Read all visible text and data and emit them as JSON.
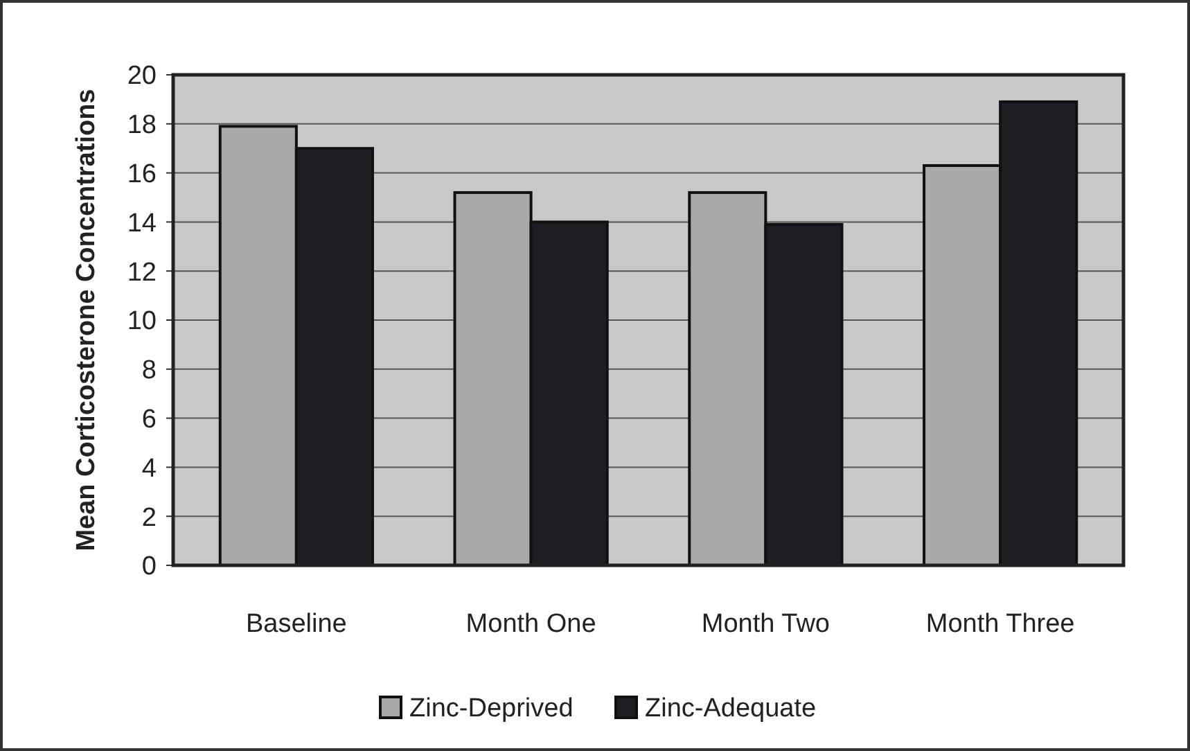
{
  "chart_data": {
    "type": "bar",
    "ylabel": "Mean Corticosterone Concentrations",
    "categories": [
      "Baseline",
      "Month One",
      "Month Two",
      "Month Three"
    ],
    "series": [
      {
        "name": "Zinc-Deprived",
        "color": "#a9a9a9",
        "values": [
          17.9,
          15.2,
          15.2,
          16.3
        ]
      },
      {
        "name": "Zinc-Adequate",
        "color": "#1e1e24",
        "values": [
          17.0,
          14.0,
          13.9,
          18.9
        ]
      }
    ],
    "ylim": [
      0,
      20
    ],
    "yticks": [
      0,
      2,
      4,
      6,
      8,
      10,
      12,
      14,
      16,
      18,
      20
    ],
    "grid": "y",
    "legend": "bottom"
  }
}
